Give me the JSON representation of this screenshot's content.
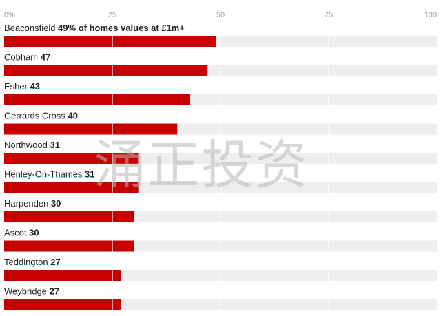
{
  "watermark": "涌正投资",
  "chart_data": {
    "type": "bar",
    "orientation": "horizontal",
    "title": "",
    "xlabel": "",
    "ylabel": "",
    "xlim": [
      0,
      100
    ],
    "ticks": [
      0,
      25,
      50,
      75,
      100
    ],
    "tick_labels": [
      "0%",
      "25",
      "50",
      "75",
      "100"
    ],
    "grid": true,
    "colors": {
      "bar": "#c70000",
      "track": "#eeeeee"
    },
    "categories": [
      "Beaconsfield",
      "Cobham",
      "Esher",
      "Gerrards Cross",
      "Northwood",
      "Henley-On-Thames",
      "Harpenden",
      "Ascot",
      "Teddington",
      "Weybridge"
    ],
    "values": [
      49,
      47,
      43,
      40,
      31,
      31,
      30,
      30,
      27,
      27
    ],
    "value_labels": [
      "49% of homes values at £1m+",
      "47",
      "43",
      "40",
      "31",
      "31",
      "30",
      "30",
      "27",
      "27"
    ]
  }
}
